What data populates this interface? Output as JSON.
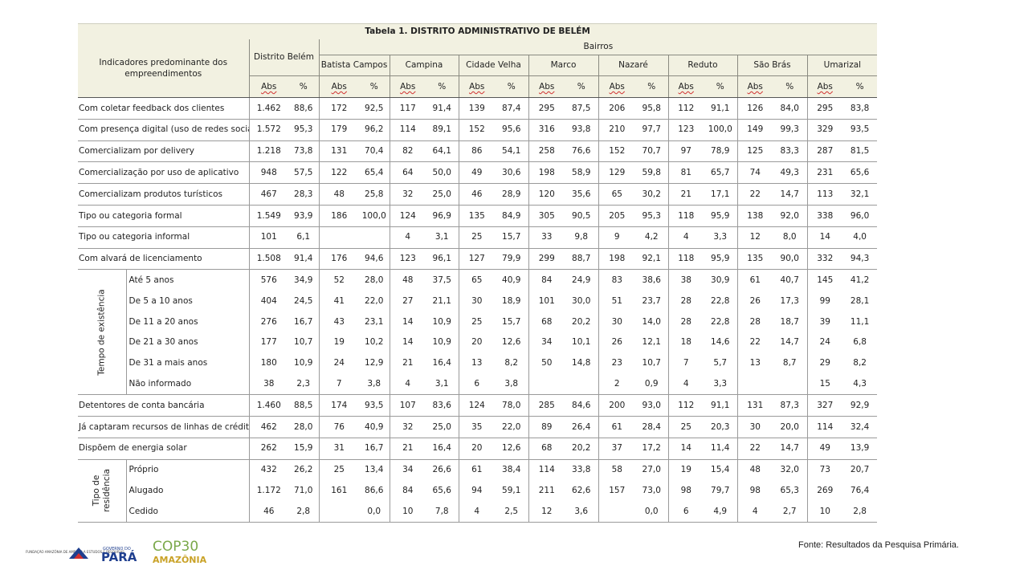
{
  "table": {
    "title": "Tabela 1. DISTRITO ADMINISTRATIVO DE BELÉM",
    "indicator_header": "Indicadores predominante dos empreendimentos",
    "district_header": "Distrito Belém",
    "bairros_header": "Bairros",
    "bairros": [
      "Batista Campos",
      "Campina",
      "Cidade Velha",
      "Marco",
      "Nazaré",
      "Reduto",
      "São Brás",
      "Umarizal"
    ],
    "abs_label": "Abs",
    "pct_label": "%",
    "rows": [
      {
        "label": "Com coletar feedback dos clientes",
        "values": [
          "1.462",
          "88,6",
          "172",
          "92,5",
          "117",
          "91,4",
          "139",
          "87,4",
          "295",
          "87,5",
          "206",
          "95,8",
          "112",
          "91,1",
          "126",
          "84,0",
          "295",
          "83,8"
        ]
      },
      {
        "label": "Com presença digital (uso de redes sociais)",
        "values": [
          "1.572",
          "95,3",
          "179",
          "96,2",
          "114",
          "89,1",
          "152",
          "95,6",
          "316",
          "93,8",
          "210",
          "97,7",
          "123",
          "100,0",
          "149",
          "99,3",
          "329",
          "93,5"
        ]
      },
      {
        "label": "Comercializam por delivery",
        "values": [
          "1.218",
          "73,8",
          "131",
          "70,4",
          "82",
          "64,1",
          "86",
          "54,1",
          "258",
          "76,6",
          "152",
          "70,7",
          "97",
          "78,9",
          "125",
          "83,3",
          "287",
          "81,5"
        ]
      },
      {
        "label": "Comercialização por uso de aplicativo",
        "values": [
          "948",
          "57,5",
          "122",
          "65,4",
          "64",
          "50,0",
          "49",
          "30,6",
          "198",
          "58,9",
          "129",
          "59,8",
          "81",
          "65,7",
          "74",
          "49,3",
          "231",
          "65,6"
        ]
      },
      {
        "label": "Comercializam produtos turísticos",
        "values": [
          "467",
          "28,3",
          "48",
          "25,8",
          "32",
          "25,0",
          "46",
          "28,9",
          "120",
          "35,6",
          "65",
          "30,2",
          "21",
          "17,1",
          "22",
          "14,7",
          "113",
          "32,1"
        ]
      },
      {
        "label": "Tipo ou categoria formal",
        "values": [
          "1.549",
          "93,9",
          "186",
          "100,0",
          "124",
          "96,9",
          "135",
          "84,9",
          "305",
          "90,5",
          "205",
          "95,3",
          "118",
          "95,9",
          "138",
          "92,0",
          "338",
          "96,0"
        ]
      },
      {
        "label": "Tipo ou categoria informal",
        "values": [
          "101",
          "6,1",
          "",
          "",
          "4",
          "3,1",
          "25",
          "15,7",
          "33",
          "9,8",
          "9",
          "4,2",
          "4",
          "3,3",
          "12",
          "8,0",
          "14",
          "4,0"
        ]
      },
      {
        "label": "Com alvará de licenciamento",
        "values": [
          "1.508",
          "91,4",
          "176",
          "94,6",
          "123",
          "96,1",
          "127",
          "79,9",
          "299",
          "88,7",
          "198",
          "92,1",
          "118",
          "95,9",
          "135",
          "90,0",
          "332",
          "94,3"
        ]
      }
    ],
    "tempo_group": {
      "label": "Tempo de existência",
      "rows": [
        {
          "label": "Até 5 anos",
          "values": [
            "576",
            "34,9",
            "52",
            "28,0",
            "48",
            "37,5",
            "65",
            "40,9",
            "84",
            "24,9",
            "83",
            "38,6",
            "38",
            "30,9",
            "61",
            "40,7",
            "145",
            "41,2"
          ]
        },
        {
          "label": "De 5 a 10 anos",
          "values": [
            "404",
            "24,5",
            "41",
            "22,0",
            "27",
            "21,1",
            "30",
            "18,9",
            "101",
            "30,0",
            "51",
            "23,7",
            "28",
            "22,8",
            "26",
            "17,3",
            "99",
            "28,1"
          ]
        },
        {
          "label": "De 11 a 20 anos",
          "values": [
            "276",
            "16,7",
            "43",
            "23,1",
            "14",
            "10,9",
            "25",
            "15,7",
            "68",
            "20,2",
            "30",
            "14,0",
            "28",
            "22,8",
            "28",
            "18,7",
            "39",
            "11,1"
          ]
        },
        {
          "label": "De 21 a 30 anos",
          "values": [
            "177",
            "10,7",
            "19",
            "10,2",
            "14",
            "10,9",
            "20",
            "12,6",
            "34",
            "10,1",
            "26",
            "12,1",
            "18",
            "14,6",
            "22",
            "14,7",
            "24",
            "6,8"
          ]
        },
        {
          "label": "De 31 a mais anos",
          "values": [
            "180",
            "10,9",
            "24",
            "12,9",
            "21",
            "16,4",
            "13",
            "8,2",
            "50",
            "14,8",
            "23",
            "10,7",
            "7",
            "5,7",
            "13",
            "8,7",
            "29",
            "8,2"
          ]
        },
        {
          "label": "Não informado",
          "values": [
            "38",
            "2,3",
            "7",
            "3,8",
            "4",
            "3,1",
            "6",
            "3,8",
            "",
            "",
            "2",
            "0,9",
            "4",
            "3,3",
            "",
            "",
            "15",
            "4,3"
          ]
        }
      ]
    },
    "rows_after": [
      {
        "label": "Detentores de conta bancária",
        "values": [
          "1.460",
          "88,5",
          "174",
          "93,5",
          "107",
          "83,6",
          "124",
          "78,0",
          "285",
          "84,6",
          "200",
          "93,0",
          "112",
          "91,1",
          "131",
          "87,3",
          "327",
          "92,9"
        ]
      },
      {
        "label": "Já captaram recursos de linhas de crédito",
        "values": [
          "462",
          "28,0",
          "76",
          "40,9",
          "32",
          "25,0",
          "35",
          "22,0",
          "89",
          "26,4",
          "61",
          "28,4",
          "25",
          "20,3",
          "30",
          "20,0",
          "114",
          "32,4"
        ]
      },
      {
        "label": "Dispõem de energia solar",
        "values": [
          "262",
          "15,9",
          "31",
          "16,7",
          "21",
          "16,4",
          "20",
          "12,6",
          "68",
          "20,2",
          "37",
          "17,2",
          "14",
          "11,4",
          "22",
          "14,7",
          "49",
          "13,9"
        ]
      }
    ],
    "residencia_group": {
      "label_line1": "Tipo de",
      "label_line2": "residência",
      "rows": [
        {
          "label": "Próprio",
          "values": [
            "432",
            "26,2",
            "25",
            "13,4",
            "34",
            "26,6",
            "61",
            "38,4",
            "114",
            "33,8",
            "58",
            "27,0",
            "19",
            "15,4",
            "48",
            "32,0",
            "73",
            "20,7"
          ]
        },
        {
          "label": "Alugado",
          "values": [
            "1.172",
            "71,0",
            "161",
            "86,6",
            "84",
            "65,6",
            "94",
            "59,1",
            "211",
            "62,6",
            "157",
            "73,0",
            "98",
            "79,7",
            "98",
            "65,3",
            "269",
            "76,4"
          ]
        },
        {
          "label": "Cedido",
          "values": [
            "46",
            "2,8",
            "",
            "0,0",
            "10",
            "7,8",
            "4",
            "2,5",
            "12",
            "3,6",
            "",
            "0,0",
            "6",
            "4,9",
            "4",
            "2,7",
            "10",
            "2,8"
          ]
        }
      ]
    }
  },
  "footer": {
    "source": "Fonte: Resultados da Pesquisa Primária.",
    "logo1_text": "FUNDAÇÃO AMAZÔNIA DE AMPARO A ESTUDOS E PESQUISAS",
    "logo2_top": "GOVERNO DO",
    "logo2_main": "PARÁ",
    "logo3_top": "COP30",
    "logo3_bottom": "AMAZÔNIA"
  },
  "colors": {
    "header_bg": "#f2f1e1",
    "pa_blue": "#1f3f8f",
    "pa_red": "#d32f2f",
    "cop_green": "#7aa84a",
    "cop_gold": "#c9a227"
  }
}
